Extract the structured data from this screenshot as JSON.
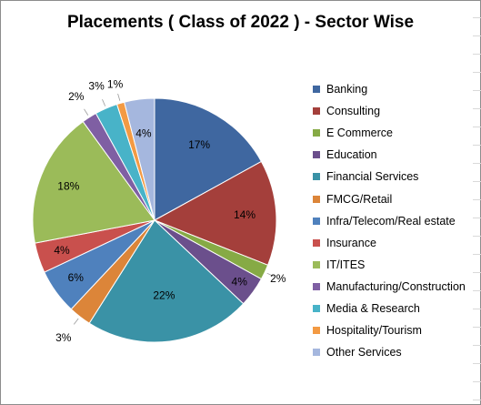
{
  "chart_data": {
    "type": "pie",
    "title": "Placements ( Class of 2022 ) - Sector Wise",
    "legend_position": "right",
    "slices": [
      {
        "label": "Banking",
        "value": 17,
        "display": "17%",
        "color": "#3f67a0"
      },
      {
        "label": "Consulting",
        "value": 14,
        "display": "14%",
        "color": "#a43f3b"
      },
      {
        "label": "E Commerce",
        "value": 2,
        "display": "2%",
        "color": "#86aa45"
      },
      {
        "label": "Education",
        "value": 4,
        "display": "4%",
        "color": "#6b4f8c"
      },
      {
        "label": "Financial Services",
        "value": 22,
        "display": "22%",
        "color": "#3a92a6"
      },
      {
        "label": "FMCG/Retail",
        "value": 3,
        "display": "3%",
        "color": "#dc8539"
      },
      {
        "label": "Infra/Telecom/Real estate",
        "value": 6,
        "display": "6%",
        "color": "#4f81bd"
      },
      {
        "label": "Insurance",
        "value": 4,
        "display": "4%",
        "color": "#c9504d"
      },
      {
        "label": "IT/ITES",
        "value": 18,
        "display": "18%",
        "color": "#9bbb59"
      },
      {
        "label": "Manufacturing/Construction",
        "value": 2,
        "display": "2%",
        "color": "#7f5fa3"
      },
      {
        "label": "Media & Research",
        "value": 3,
        "display": "3%",
        "color": "#48b3c8"
      },
      {
        "label": "Hospitality/Tourism",
        "value": 1,
        "display": "1%",
        "color": "#f39a43"
      },
      {
        "label": "Other Services",
        "value": 4,
        "display": "4%",
        "color": "#a5b7de"
      }
    ]
  }
}
